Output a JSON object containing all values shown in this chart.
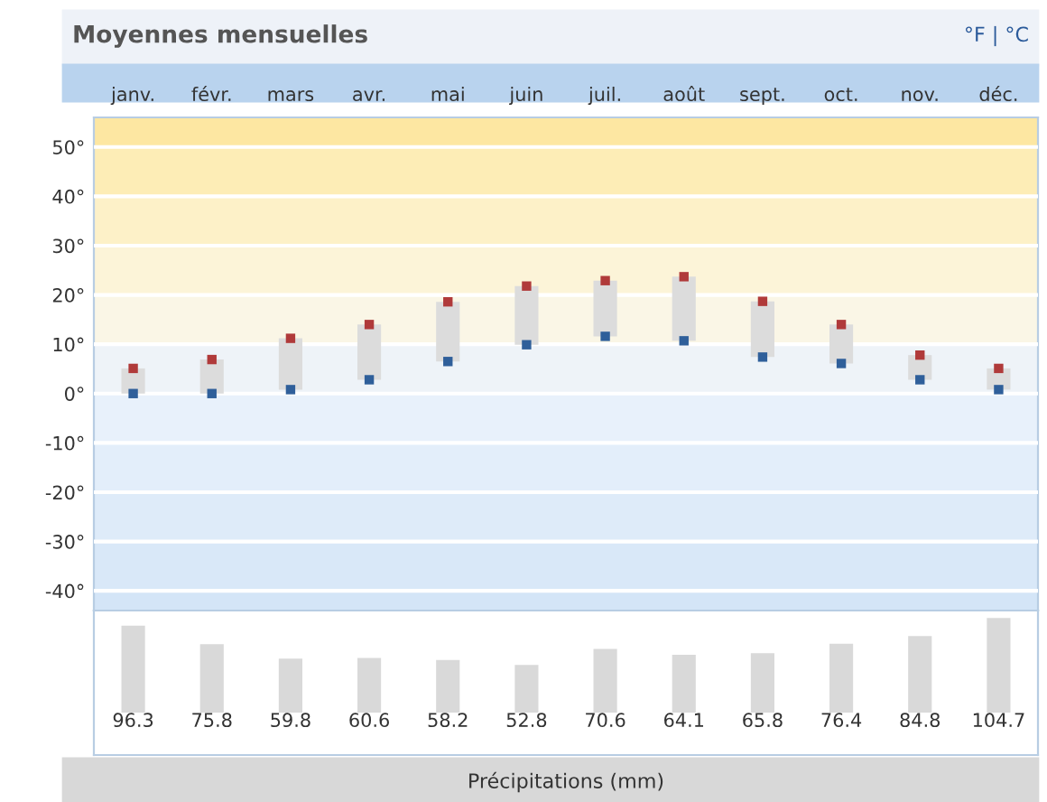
{
  "chart_data": [
    {
      "type": "bar",
      "title": "Moyennes mensuelles",
      "annotations": [
        "°F | °C"
      ],
      "categories": [
        "janv.",
        "févr.",
        "mars",
        "avr.",
        "mai",
        "juin",
        "juil.",
        "août",
        "sept.",
        "oct.",
        "nov.",
        "déc."
      ],
      "series": [
        {
          "type": "bar",
          "color": "#dcdcdc",
          "base": [
            0,
            0,
            0.8,
            2.8,
            6.5,
            9.9,
            11.6,
            10.7,
            7.4,
            6.1,
            2.8,
            0.8
          ],
          "values": [
            5.1,
            6.9,
            10.4,
            11.2,
            12.1,
            11.9,
            11.3,
            13.0,
            11.3,
            7.9,
            5.0,
            4.3
          ]
        },
        {
          "type": "scatter",
          "marker": "square",
          "color": "#b03a3a",
          "values": [
            5.1,
            6.9,
            11.2,
            14.0,
            18.6,
            21.8,
            22.9,
            23.7,
            18.7,
            14.0,
            7.8,
            5.1
          ]
        },
        {
          "type": "scatter",
          "marker": "square",
          "color": "#2f5f9a",
          "values": [
            0,
            0,
            0.8,
            2.8,
            6.5,
            9.9,
            11.6,
            10.7,
            7.4,
            6.1,
            2.8,
            0.8
          ]
        }
      ],
      "ylim": [
        -44,
        56
      ],
      "yticks": [
        {
          "value": 50,
          "label": "50°"
        },
        {
          "value": 40,
          "label": "40°"
        },
        {
          "value": 30,
          "label": "30°"
        },
        {
          "value": 20,
          "label": "20°"
        },
        {
          "value": 10,
          "label": "10°"
        },
        {
          "value": 0,
          "label": "0°"
        },
        {
          "value": -10,
          "label": "-10°"
        },
        {
          "value": -20,
          "label": "-20°"
        },
        {
          "value": -30,
          "label": "-30°"
        },
        {
          "value": -40,
          "label": "-40°"
        }
      ],
      "grid": "y",
      "bands": [
        {
          "axis": "y",
          "from": 50,
          "to": 56,
          "color": "#fde7a2"
        },
        {
          "axis": "y",
          "from": 40,
          "to": 50,
          "color": "#fdedb6"
        },
        {
          "axis": "y",
          "from": 30,
          "to": 40,
          "color": "#fdf1c8"
        },
        {
          "axis": "y",
          "from": 20,
          "to": 30,
          "color": "#fcf4d8"
        },
        {
          "axis": "y",
          "from": 10,
          "to": 20,
          "color": "#faf6e6"
        },
        {
          "axis": "y",
          "from": 0,
          "to": 10,
          "color": "#eef3f8"
        },
        {
          "axis": "y",
          "from": -10,
          "to": 0,
          "color": "#e8f1fb"
        },
        {
          "axis": "y",
          "from": -20,
          "to": -10,
          "color": "#e3eefa"
        },
        {
          "axis": "y",
          "from": -30,
          "to": -20,
          "color": "#deebf9"
        },
        {
          "axis": "y",
          "from": -40,
          "to": -30,
          "color": "#d9e8f8"
        },
        {
          "axis": "y",
          "from": -44,
          "to": -40,
          "color": "#d4e5f7"
        }
      ]
    },
    {
      "type": "bar",
      "xlabel": "Précipitations (mm)",
      "categories": [
        null,
        null,
        null,
        null,
        null,
        null,
        null,
        null,
        null,
        null,
        null,
        null
      ],
      "values": [
        96.3,
        75.8,
        59.8,
        60.6,
        58.2,
        52.8,
        70.6,
        64.1,
        65.8,
        76.4,
        84.8,
        104.7
      ],
      "color": "#d9d9d9",
      "data_labels": true
    }
  ]
}
